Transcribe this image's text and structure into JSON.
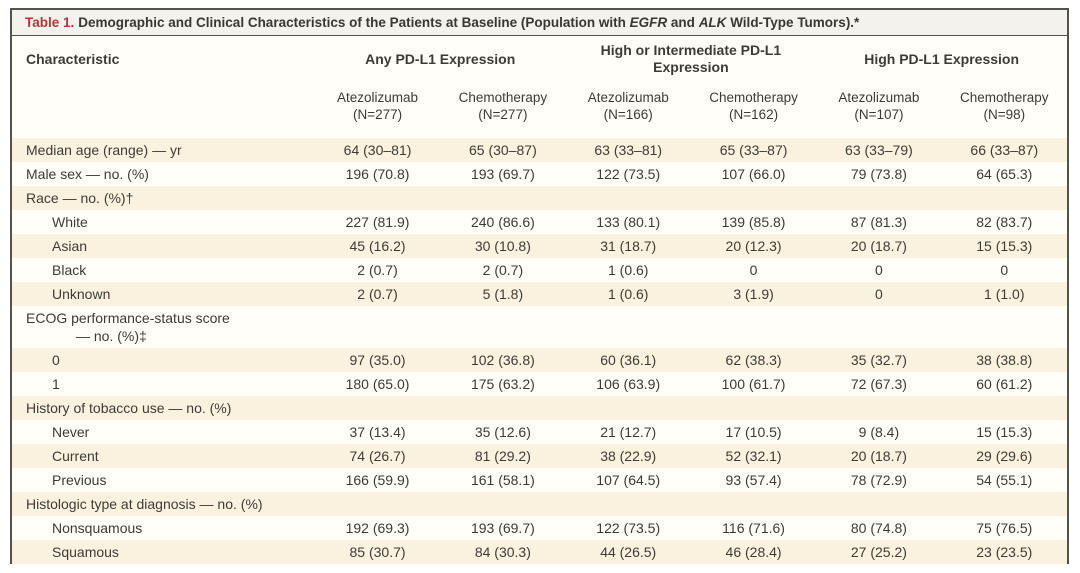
{
  "title": {
    "label": "Table 1.",
    "part1": "Demographic and Clinical Characteristics of the Patients at Baseline (Population with ",
    "gene1": "EGFR",
    "part2": " and ",
    "gene2": "ALK",
    "part3": " Wild-Type Tumors).*"
  },
  "header": {
    "characteristic": "Characteristic",
    "groups": [
      {
        "label": "Any PD-L1 Expression",
        "columns": [
          {
            "arm": "Atezolizumab",
            "n": "(N=277)"
          },
          {
            "arm": "Chemotherapy",
            "n": "(N=277)"
          }
        ]
      },
      {
        "label": "High or Intermediate PD-L1 Expression",
        "columns": [
          {
            "arm": "Atezolizumab",
            "n": "(N=166)"
          },
          {
            "arm": "Chemotherapy",
            "n": "(N=162)"
          }
        ]
      },
      {
        "label": "High PD-L1 Expression",
        "columns": [
          {
            "arm": "Atezolizumab",
            "n": "(N=107)"
          },
          {
            "arm": "Chemotherapy",
            "n": "(N=98)"
          }
        ]
      }
    ]
  },
  "table": {
    "rows": [
      {
        "label": "Median age (range) — yr",
        "indent": 0,
        "values": [
          "64 (30–81)",
          "65 (30–87)",
          "63 (33–81)",
          "65 (33–87)",
          "63 (33–79)",
          "66 (33–87)"
        ]
      },
      {
        "label": "Male sex — no. (%)",
        "indent": 0,
        "values": [
          "196 (70.8)",
          "193 (69.7)",
          "122 (73.5)",
          "107 (66.0)",
          "79 (73.8)",
          "64 (65.3)"
        ]
      },
      {
        "label": "Race — no. (%)†",
        "indent": 0,
        "values": [
          "",
          "",
          "",
          "",
          "",
          ""
        ]
      },
      {
        "label": "White",
        "indent": 1,
        "values": [
          "227 (81.9)",
          "240 (86.6)",
          "133 (80.1)",
          "139 (85.8)",
          "87 (81.3)",
          "82 (83.7)"
        ]
      },
      {
        "label": "Asian",
        "indent": 1,
        "values": [
          "45 (16.2)",
          "30 (10.8)",
          "31 (18.7)",
          "20 (12.3)",
          "20 (18.7)",
          "15 (15.3)"
        ]
      },
      {
        "label": "Black",
        "indent": 1,
        "values": [
          "2 (0.7)",
          "2 (0.7)",
          "1 (0.6)",
          "0",
          "0",
          "0"
        ]
      },
      {
        "label": "Unknown",
        "indent": 1,
        "values": [
          "2 (0.7)",
          "5 (1.8)",
          "1 (0.6)",
          "3 (1.9)",
          "0",
          "1 (1.0)"
        ]
      },
      {
        "label": "ECOG performance-status score",
        "label2": "— no. (%)‡",
        "indent": 0,
        "values": [
          "",
          "",
          "",
          "",
          "",
          ""
        ]
      },
      {
        "label": "0",
        "indent": 1,
        "values": [
          "97 (35.0)",
          "102 (36.8)",
          "60 (36.1)",
          "62 (38.3)",
          "35 (32.7)",
          "38 (38.8)"
        ]
      },
      {
        "label": "1",
        "indent": 1,
        "values": [
          "180 (65.0)",
          "175 (63.2)",
          "106 (63.9)",
          "100 (61.7)",
          "72 (67.3)",
          "60 (61.2)"
        ]
      },
      {
        "label": "History of tobacco use — no. (%)",
        "indent": 0,
        "values": [
          "",
          "",
          "",
          "",
          "",
          ""
        ]
      },
      {
        "label": "Never",
        "indent": 1,
        "values": [
          "37 (13.4)",
          "35 (12.6)",
          "21 (12.7)",
          "17 (10.5)",
          "9 (8.4)",
          "15 (15.3)"
        ]
      },
      {
        "label": "Current",
        "indent": 1,
        "values": [
          "74 (26.7)",
          "81 (29.2)",
          "38 (22.9)",
          "52 (32.1)",
          "20 (18.7)",
          "29 (29.6)"
        ]
      },
      {
        "label": "Previous",
        "indent": 1,
        "values": [
          "166 (59.9)",
          "161 (58.1)",
          "107 (64.5)",
          "93 (57.4)",
          "78 (72.9)",
          "54 (55.1)"
        ]
      },
      {
        "label": "Histologic type at diagnosis — no. (%)",
        "indent": 0,
        "values": [
          "",
          "",
          "",
          "",
          "",
          ""
        ]
      },
      {
        "label": "Nonsquamous",
        "indent": 1,
        "values": [
          "192 (69.3)",
          "193 (69.7)",
          "122 (73.5)",
          "116 (71.6)",
          "80 (74.8)",
          "75 (76.5)"
        ]
      },
      {
        "label": "Squamous",
        "indent": 1,
        "values": [
          "85 (30.7)",
          "84 (30.3)",
          "44 (26.5)",
          "46 (28.4)",
          "27 (25.2)",
          "23 (23.5)"
        ]
      }
    ]
  },
  "colors": {
    "accent_red": "#b2373c",
    "row_shade": "#faf2df",
    "frame_border": "#55524c",
    "text": "#3e3b36"
  }
}
